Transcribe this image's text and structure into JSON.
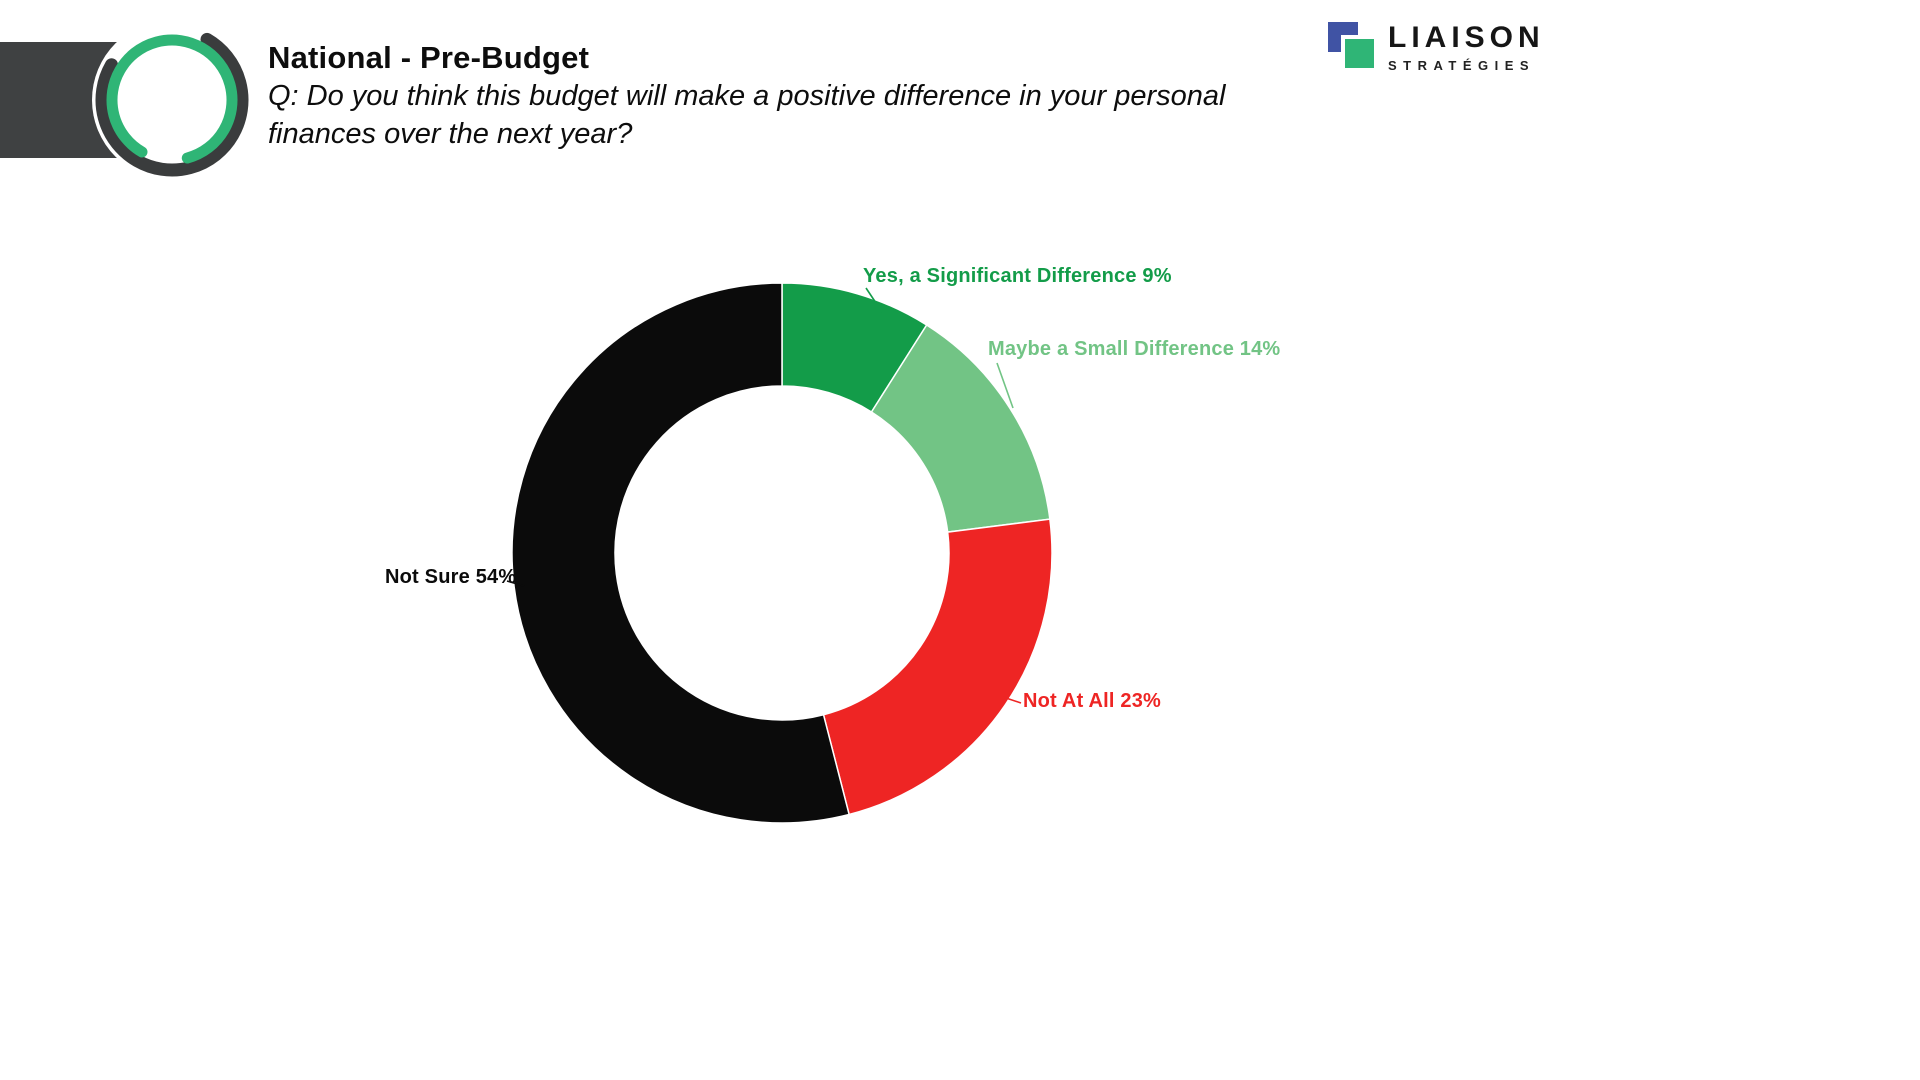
{
  "header": {
    "title": "National - Pre-Budget",
    "question": "Q: Do you think this budget will make a positive difference in your personal finances over the next year?"
  },
  "brand": {
    "name": "LIAISON",
    "subtitle": "STRATÉGIES",
    "icon": "overlapping-squares-icon",
    "colors": {
      "blue": "#4053a4",
      "green": "#2fb576"
    }
  },
  "decor": {
    "banner_color": "#3f4142",
    "ring_logo": "concentric-rings-icon",
    "ring_colors": {
      "dark": "#3a3c3d",
      "green": "#2fb576"
    }
  },
  "chart_data": {
    "type": "pie",
    "donut": true,
    "title": "Do you think this budget will make a positive difference in your personal finances over the next year?",
    "start_angle_deg": -90,
    "direction": "clockwise",
    "legend_position": "callout-labels",
    "categories": [
      "Yes, a Significant Difference",
      "Maybe a Small Difference",
      "Not At All",
      "Not Sure"
    ],
    "values": [
      9,
      14,
      23,
      54
    ],
    "slices": [
      {
        "label": "Yes, a Significant Difference",
        "value": 9,
        "display": "Yes, a Significant Difference 9%",
        "color": "#139c49"
      },
      {
        "label": "Maybe a Small Difference",
        "value": 14,
        "display": "Maybe a Small Difference 14%",
        "color": "#72c485"
      },
      {
        "label": "Not At All",
        "value": 23,
        "display": "Not At All 23%",
        "color": "#ee2524"
      },
      {
        "label": "Not Sure",
        "value": 54,
        "display": "Not Sure 54%",
        "color": "#0b0b0b"
      }
    ]
  }
}
